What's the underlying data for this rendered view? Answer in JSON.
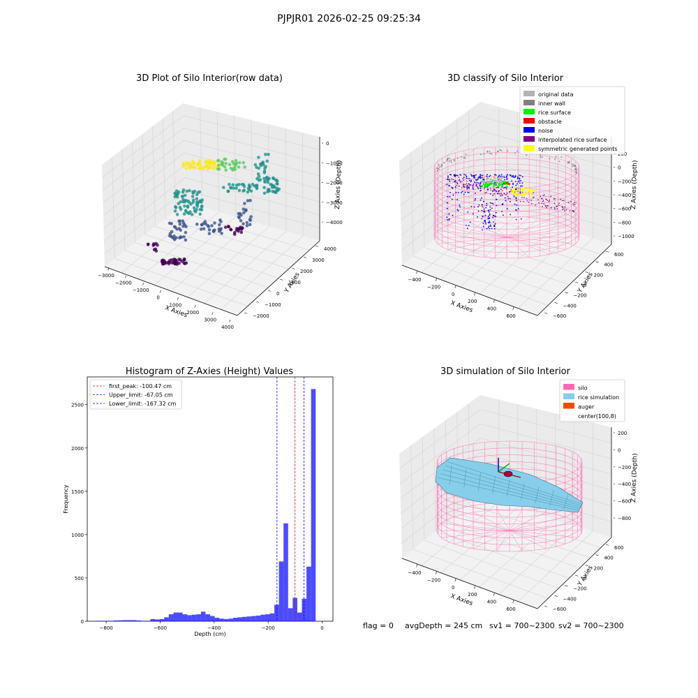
{
  "figure": {
    "suptitle": "PJPJR01 2026-02-25 09:25:34",
    "status": {
      "flag": "flag = 0",
      "avg_depth": "avgDepth = 245 cm",
      "sv1": "sv1 = 700~2300",
      "sv2": "sv2 = 700~2300"
    }
  },
  "panels": {
    "raw3d": {
      "title": "3D Plot of Silo Interior(row data)",
      "xlabel": "X Axies",
      "ylabel": "Y Axies",
      "zlabel": "Z Axies (Depth)",
      "x_ticks": [
        "−3000",
        "−2000",
        "−1000",
        "0",
        "1000",
        "2000",
        "3000",
        "4000"
      ],
      "y_ticks": [
        "−2000",
        "−1000",
        "0",
        "1000",
        "2000",
        "3000",
        "4000"
      ],
      "z_ticks": [
        "−4000",
        "−3000",
        "−2000",
        "−1000",
        "0"
      ]
    },
    "classify3d": {
      "title": "3D classify of Silo Interior",
      "xlabel": "X Axies",
      "ylabel": "Y Axies",
      "zlabel": "Z Axies (Depth)",
      "x_ticks": [
        "−400",
        "−200",
        "0",
        "200",
        "400",
        "600"
      ],
      "y_ticks": [
        "−600",
        "−400",
        "−200",
        "0",
        "200",
        "400",
        "600"
      ],
      "z_ticks": [
        "−1000",
        "−800",
        "−600",
        "−400",
        "−200",
        "0",
        "200"
      ],
      "legend": [
        {
          "label": "original data",
          "color": "#b3b3b3"
        },
        {
          "label": "inner wall",
          "color": "#808080"
        },
        {
          "label": "rice surface",
          "color": "#00ee00"
        },
        {
          "label": "obstacle",
          "color": "#ee0000"
        },
        {
          "label": "noise",
          "color": "#0000ee"
        },
        {
          "label": "interpolated rice surface",
          "color": "#800080"
        },
        {
          "label": "symmetric generated points",
          "color": "#ffff00"
        }
      ]
    },
    "simulation3d": {
      "title": "3D simulation of Silo Interior",
      "xlabel": "X Axies",
      "ylabel": "Y Axies",
      "zlabel": "Z Axies (Depth)",
      "x_ticks": [
        "−400",
        "−200",
        "0",
        "200",
        "400",
        "600"
      ],
      "y_ticks": [
        "−600",
        "−400",
        "−200",
        "0",
        "200",
        "400",
        "600"
      ],
      "z_ticks": [
        "−800",
        "−600",
        "−400",
        "−200",
        "0",
        "200"
      ],
      "legend": [
        {
          "label": "silo",
          "color": "#ff69b4"
        },
        {
          "label": "rice simulation",
          "color": "#87ceeb"
        },
        {
          "label": "auger",
          "color": "#ff4500"
        },
        {
          "label": "center(100,8)",
          "color": ""
        }
      ]
    }
  },
  "chart_data": {
    "type": "bar",
    "title": "Histogram of Z-Axies (Height) Values",
    "xlabel": "Depth (cm)",
    "ylabel": "Frequency",
    "xlim": [
      -870,
      40
    ],
    "ylim": [
      0,
      2820
    ],
    "x_ticks": [
      -800,
      -600,
      -400,
      -200,
      0
    ],
    "y_ticks": [
      0,
      500,
      1000,
      1500,
      2000,
      2500
    ],
    "bar_color": "#0000ff",
    "bins_start": [
      -840,
      -823,
      -806,
      -789,
      -772,
      -755,
      -738,
      -721,
      -704,
      -687,
      -670,
      -653,
      -636,
      -619,
      -602,
      -585,
      -568,
      -551,
      -534,
      -517,
      -500,
      -483,
      -466,
      -449,
      -432,
      -415,
      -398,
      -381,
      -364,
      -347,
      -330,
      -313,
      -296,
      -279,
      -262,
      -245,
      -228,
      -211,
      -194,
      -177,
      -160,
      -143,
      -126,
      -109,
      -92,
      -75,
      -58,
      -41,
      -24,
      -7
    ],
    "bin_width": 17,
    "counts": [
      5,
      5,
      5,
      5,
      8,
      10,
      12,
      12,
      12,
      8,
      5,
      5,
      25,
      20,
      25,
      45,
      80,
      100,
      100,
      80,
      70,
      75,
      80,
      110,
      80,
      60,
      40,
      30,
      25,
      30,
      40,
      45,
      50,
      55,
      60,
      65,
      75,
      80,
      90,
      190,
      690,
      1130,
      150,
      270,
      100,
      260,
      630,
      2680,
      0,
      0
    ],
    "lines": [
      {
        "label": "first_peak: -100.47 cm",
        "x": -100.47,
        "color": "#ff0000"
      },
      {
        "label": "Upper_limit: -67.05 cm",
        "x": -67.05,
        "color": "#0000ff"
      },
      {
        "label": "Lower_limit: -167.32 cm",
        "x": -167.32,
        "color": "#0000ff"
      }
    ]
  }
}
